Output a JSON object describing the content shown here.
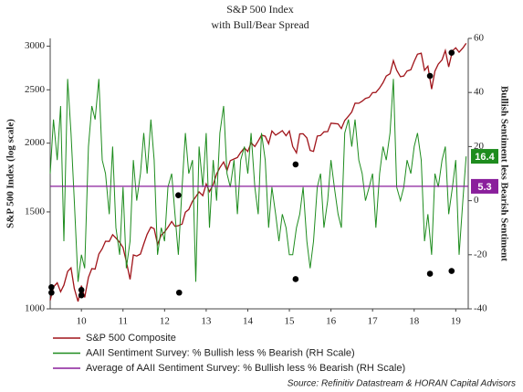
{
  "chart_data": {
    "type": "line",
    "title": "S&P 500 Index",
    "subtitle": "with Bull/Bear Spread",
    "y_label": "S&P 500 Index (log scale)",
    "y2_label": "Bullish Sentiment less Bearish Sentiment",
    "source": "Source: Refinitiv Datastream & HORAN Capital Advisors",
    "y_scale": "log",
    "xlim": [
      2009.75,
      2019.8
    ],
    "xticks": [
      {
        "value": 2010.5,
        "label": "10"
      },
      {
        "value": 2011.5,
        "label": "11"
      },
      {
        "value": 2012.5,
        "label": "12"
      },
      {
        "value": 2013.5,
        "label": "13"
      },
      {
        "value": 2014.5,
        "label": "14"
      },
      {
        "value": 2015.5,
        "label": "15"
      },
      {
        "value": 2016.5,
        "label": "16"
      },
      {
        "value": 2017.5,
        "label": "17"
      },
      {
        "value": 2018.5,
        "label": "18"
      },
      {
        "value": 2019.5,
        "label": "19"
      }
    ],
    "ylim": [
      1000,
      3100
    ],
    "yticks": [
      1000,
      1500,
      2000,
      2500,
      3000
    ],
    "y2lim": [
      -40,
      60
    ],
    "y2ticks": [
      -40,
      -20,
      0,
      20,
      40,
      60
    ],
    "x": [
      2009.75,
      2009.83,
      2009.92,
      2010,
      2010.08,
      2010.17,
      2010.25,
      2010.33,
      2010.42,
      2010.5,
      2010.58,
      2010.67,
      2010.75,
      2010.83,
      2010.92,
      2011,
      2011.08,
      2011.17,
      2011.25,
      2011.33,
      2011.42,
      2011.5,
      2011.58,
      2011.67,
      2011.75,
      2011.83,
      2011.92,
      2012,
      2012.08,
      2012.17,
      2012.25,
      2012.33,
      2012.42,
      2012.5,
      2012.58,
      2012.67,
      2012.75,
      2012.83,
      2012.92,
      2013,
      2013.08,
      2013.17,
      2013.25,
      2013.33,
      2013.42,
      2013.5,
      2013.58,
      2013.67,
      2013.75,
      2013.83,
      2013.92,
      2014,
      2014.08,
      2014.17,
      2014.25,
      2014.33,
      2014.42,
      2014.5,
      2014.58,
      2014.67,
      2014.75,
      2014.83,
      2014.92,
      2015,
      2015.08,
      2015.17,
      2015.25,
      2015.33,
      2015.42,
      2015.5,
      2015.58,
      2015.67,
      2015.75,
      2015.83,
      2015.92,
      2016,
      2016.08,
      2016.17,
      2016.25,
      2016.33,
      2016.42,
      2016.5,
      2016.58,
      2016.67,
      2016.75,
      2016.83,
      2016.92,
      2017,
      2017.08,
      2017.17,
      2017.25,
      2017.33,
      2017.42,
      2017.5,
      2017.58,
      2017.67,
      2017.75,
      2017.83,
      2017.92,
      2018,
      2018.08,
      2018.17,
      2018.25,
      2018.33,
      2018.42,
      2018.5,
      2018.58,
      2018.67,
      2018.75,
      2018.83,
      2018.92,
      2019,
      2019.08,
      2019.17,
      2019.25,
      2019.33,
      2019.42,
      2019.5,
      2019.58,
      2019.67,
      2019.75
    ],
    "series": [
      {
        "name": "S&P 500 Composite",
        "color": "#a0141a",
        "axis": "y",
        "values": [
          1036,
          1096,
          1115,
          1074,
          1104,
          1169,
          1187,
          1089,
          1031,
          1102,
          1049,
          1141,
          1183,
          1181,
          1258,
          1286,
          1327,
          1326,
          1364,
          1345,
          1321,
          1292,
          1219,
          1131,
          1253,
          1247,
          1258,
          1312,
          1366,
          1408,
          1398,
          1310,
          1362,
          1379,
          1407,
          1441,
          1412,
          1416,
          1426,
          1498,
          1515,
          1569,
          1598,
          1631,
          1606,
          1686,
          1633,
          1682,
          1757,
          1806,
          1848,
          1783,
          1859,
          1872,
          1884,
          1924,
          1960,
          1931,
          2003,
          1972,
          2018,
          2068,
          2059,
          1995,
          2105,
          2068,
          2086,
          2107,
          2063,
          2104,
          1972,
          1920,
          2079,
          2080,
          2044,
          1940,
          1932,
          2060,
          2065,
          2097,
          2099,
          2174,
          2171,
          2168,
          2126,
          2199,
          2239,
          2279,
          2364,
          2363,
          2384,
          2412,
          2423,
          2470,
          2472,
          2519,
          2575,
          2648,
          2674,
          2824,
          2714,
          2641,
          2648,
          2705,
          2718,
          2816,
          2902,
          2914,
          2712,
          2760,
          2507,
          2704,
          2784,
          2834,
          2946,
          2752,
          2942,
          2980,
          2926,
          2977,
          3037
        ]
      },
      {
        "name": "AAII Sentiment Survey: % Bullish less % Bearish (RH Scale)",
        "color": "#1e8c1e",
        "axis": "y2",
        "values": [
          10,
          30,
          15,
          35,
          -15,
          45,
          25,
          0,
          -30,
          -20,
          -25,
          20,
          35,
          30,
          45,
          15,
          10,
          -5,
          20,
          -10,
          -20,
          5,
          -25,
          -15,
          15,
          0,
          10,
          25,
          10,
          30,
          15,
          -20,
          -10,
          -15,
          5,
          10,
          -5,
          -20,
          5,
          25,
          10,
          15,
          -30,
          20,
          5,
          25,
          -10,
          15,
          0,
          25,
          35,
          10,
          5,
          15,
          -5,
          15,
          20,
          10,
          25,
          5,
          -5,
          25,
          15,
          -10,
          5,
          -5,
          -15,
          -5,
          -10,
          -20,
          -20,
          -10,
          -5,
          5,
          -15,
          -25,
          -15,
          5,
          10,
          -10,
          0,
          15,
          5,
          -5,
          -10,
          25,
          30,
          20,
          30,
          15,
          10,
          0,
          5,
          10,
          -10,
          10,
          20,
          15,
          25,
          45,
          5,
          0,
          5,
          15,
          10,
          20,
          25,
          15,
          -15,
          -5,
          -20,
          10,
          5,
          15,
          20,
          -5,
          5,
          15,
          -20,
          0,
          16.4
        ]
      },
      {
        "name": "Average of AAII Sentiment Survey: % Bullish less % Bearish (RH Scale)",
        "color": "#8a1f9c",
        "axis": "y2",
        "value": 5.3
      }
    ],
    "markers": [
      {
        "axis": "y",
        "color": "#000000",
        "x": [
          2015.65,
          2018.88,
          2019.4
        ],
        "values": [
          1830,
          2650,
          2920
        ]
      },
      {
        "axis": "y2",
        "color": "#000000",
        "x": [
          2009.78,
          2009.78,
          2010.5,
          2010.5,
          2012.85,
          2012.83,
          2015.65,
          2018.88,
          2019.4
        ],
        "values": [
          -32,
          -34,
          -33,
          -35,
          -34,
          2,
          -29,
          -27,
          -26
        ]
      }
    ]
  }
}
